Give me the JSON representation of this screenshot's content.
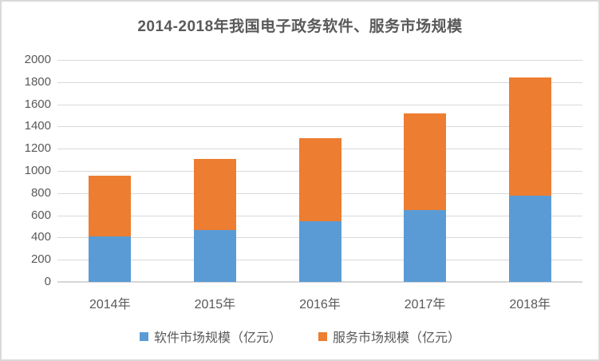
{
  "title": "2014-2018年我国电子政务软件、服务市场规模",
  "chart_data": {
    "type": "bar",
    "stacked": true,
    "title": "2014-2018年我国电子政务软件、服务市场规模",
    "categories": [
      "2014年",
      "2015年",
      "2016年",
      "2017年",
      "2018年"
    ],
    "series": [
      {
        "name": "软件市场规模（亿元）",
        "color": "#5B9BD5",
        "values": [
          410,
          465,
          545,
          645,
          775
        ]
      },
      {
        "name": "服务市场规模（亿元）",
        "color": "#ED7D31",
        "values": [
          550,
          645,
          750,
          875,
          1070
        ]
      }
    ],
    "stack_totals": [
      960,
      1110,
      1295,
      1520,
      1845
    ],
    "xlabel": "",
    "ylabel": "",
    "ylim": [
      0,
      2000
    ],
    "ytick_step": 200,
    "ytick_labels": [
      "0",
      "200",
      "400",
      "600",
      "800",
      "1000",
      "1200",
      "1400",
      "1600",
      "1800",
      "2000"
    ],
    "grid": true,
    "legend_position": "bottom"
  },
  "colors": {
    "software_series": "#5B9BD5",
    "service_series": "#ED7D31",
    "gridline": "#d9d9d9",
    "text": "#595959",
    "frame_border": "#d9d9d9",
    "background": "#ffffff"
  }
}
